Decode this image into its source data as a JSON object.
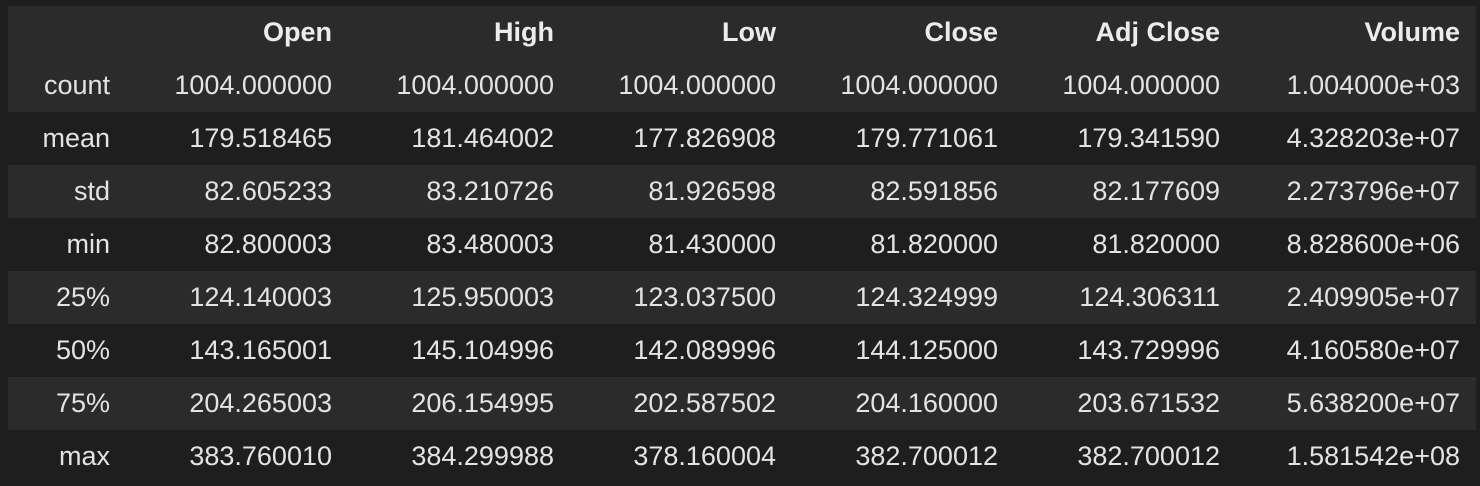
{
  "table": {
    "columns": [
      "",
      "Open",
      "High",
      "Low",
      "Close",
      "Adj Close",
      "Volume"
    ],
    "rows": [
      {
        "label": "count",
        "values": [
          "1004.000000",
          "1004.000000",
          "1004.000000",
          "1004.000000",
          "1004.000000",
          "1.004000e+03"
        ]
      },
      {
        "label": "mean",
        "values": [
          "179.518465",
          "181.464002",
          "177.826908",
          "179.771061",
          "179.341590",
          "4.328203e+07"
        ]
      },
      {
        "label": "std",
        "values": [
          "82.605233",
          "83.210726",
          "81.926598",
          "82.591856",
          "82.177609",
          "2.273796e+07"
        ]
      },
      {
        "label": "min",
        "values": [
          "82.800003",
          "83.480003",
          "81.430000",
          "81.820000",
          "81.820000",
          "8.828600e+06"
        ]
      },
      {
        "label": "25%",
        "values": [
          "124.140003",
          "125.950003",
          "123.037500",
          "124.324999",
          "124.306311",
          "2.409905e+07"
        ]
      },
      {
        "label": "50%",
        "values": [
          "143.165001",
          "145.104996",
          "142.089996",
          "144.125000",
          "143.729996",
          "4.160580e+07"
        ]
      },
      {
        "label": "75%",
        "values": [
          "204.265003",
          "206.154995",
          "202.587502",
          "204.160000",
          "203.671532",
          "5.638200e+07"
        ]
      },
      {
        "label": "max",
        "values": [
          "383.760010",
          "384.299988",
          "378.160004",
          "382.700012",
          "382.700012",
          "1.581542e+08"
        ]
      }
    ]
  }
}
